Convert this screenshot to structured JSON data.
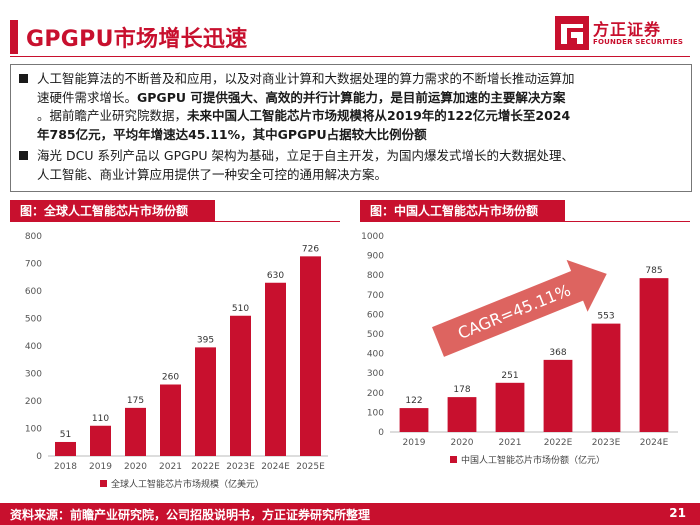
{
  "header": {
    "title": "GPGPU市场增长迅速",
    "logo_cn": "方正证券",
    "logo_en": "FOUNDER SECURITIES"
  },
  "bullets": [
    {
      "line1": "人工智能算法的不断普及和应用，以及对商业计算和大数据处理的算力需求的不断增长推动运算加",
      "line2": "速硬件需求增长。",
      "line2_bold": "GPGPU 可提供强大、高效的并行计算能力，是目前运算加速的主要解决方案",
      "line3": "。据前瞻产业研究院数据，",
      "line3_bold": "未来中国人工智能芯片市场规模将从2019年的122亿元增长至2024",
      "line4_bold": "年785亿元，平均年增速达45.11%，其中GPGPU占据较大比例份额"
    },
    {
      "line1": "海光 DCU 系列产品以 GPGPU 架构为基础，立足于自主开发，为国内爆发式增长的大数据处理、",
      "line2": "人工智能、商业计算应用提供了一种安全可控的通用解决方案。"
    }
  ],
  "chart_data": [
    {
      "type": "bar",
      "title": "图：全球人工智能芯片市场份额",
      "categories": [
        "2018",
        "2019",
        "2020",
        "2021",
        "2022E",
        "2023E",
        "2024E",
        "2025E"
      ],
      "series": [
        {
          "name": "全球人工智能芯片市场规模（亿美元）",
          "values": [
            51,
            110,
            175,
            260,
            395,
            510,
            630,
            726
          ]
        }
      ],
      "ylim": [
        0,
        800
      ],
      "yticks": [
        0,
        100,
        200,
        300,
        400,
        500,
        600,
        700,
        800
      ],
      "grid": false,
      "legend": "bottom",
      "color": "#c8102e"
    },
    {
      "type": "bar",
      "title": "图：中国人工智能芯片市场份额",
      "categories": [
        "2019",
        "2020",
        "2021",
        "2022E",
        "2023E",
        "2024E"
      ],
      "series": [
        {
          "name": "中国人工智能芯片市场份额（亿元）",
          "values": [
            122,
            178,
            251,
            368,
            553,
            785
          ]
        }
      ],
      "ylim": [
        0,
        1000
      ],
      "yticks": [
        0,
        100,
        200,
        300,
        400,
        500,
        600,
        700,
        800,
        900,
        1000
      ],
      "grid": false,
      "legend": "bottom",
      "annotation": "CAGR=45.11%",
      "color": "#c8102e"
    }
  ],
  "footer": {
    "source": "资料来源：前瞻产业研究院，公司招股说明书，方正证券研究所整理",
    "page": "21"
  }
}
